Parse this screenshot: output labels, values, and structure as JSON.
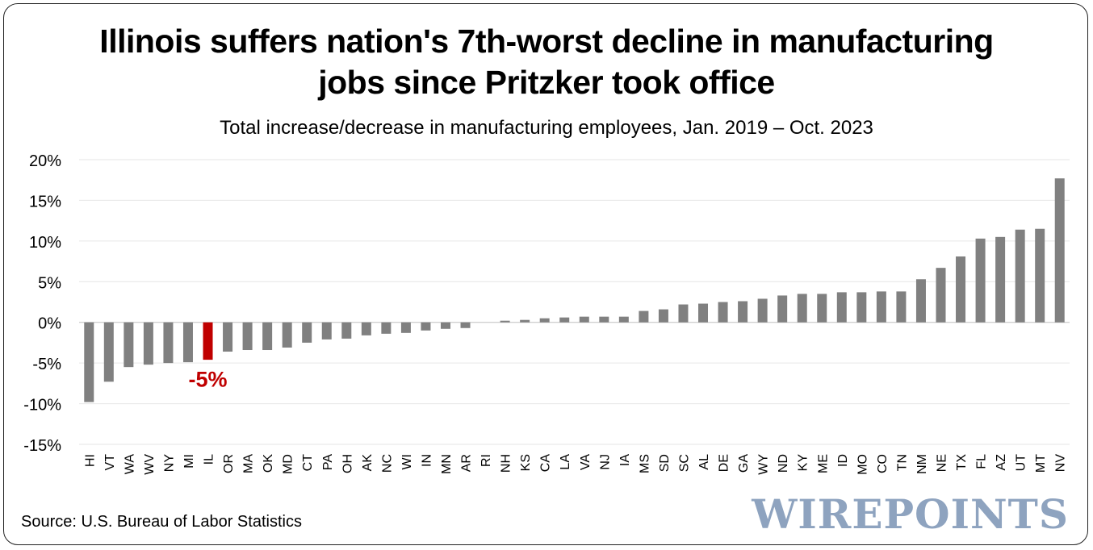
{
  "title_line1": "Illinois suffers nation's 7th-worst decline in manufacturing",
  "title_line2": "jobs since Pritzker took office",
  "subtitle": "Total increase/decrease in manufacturing employees, Jan. 2019 – Oct. 2023",
  "source": "Source: U.S. Bureau of Labor Statistics",
  "logo": "WIREPOINTS",
  "colors": {
    "bar": "#808080",
    "highlight": "#c00000",
    "grid": "#e6e6e6"
  },
  "chart_data": {
    "type": "bar",
    "categories": [
      "HI",
      "VT",
      "WA",
      "WV",
      "NY",
      "MI",
      "IL",
      "OR",
      "MA",
      "OK",
      "MD",
      "CT",
      "PA",
      "OH",
      "AK",
      "NC",
      "WI",
      "IN",
      "MN",
      "AR",
      "RI",
      "NH",
      "KS",
      "CA",
      "LA",
      "VA",
      "NJ",
      "IA",
      "MS",
      "SD",
      "SC",
      "AL",
      "DE",
      "GA",
      "WY",
      "ND",
      "KY",
      "ME",
      "ID",
      "MO",
      "CO",
      "TN",
      "NM",
      "NE",
      "TX",
      "FL",
      "AZ",
      "UT",
      "MT",
      "NV"
    ],
    "values": [
      -9.8,
      -7.3,
      -5.5,
      -5.2,
      -5.0,
      -4.9,
      -4.6,
      -3.6,
      -3.4,
      -3.4,
      -3.1,
      -2.5,
      -2.1,
      -2.0,
      -1.6,
      -1.4,
      -1.3,
      -1.0,
      -0.8,
      -0.7,
      0.0,
      0.2,
      0.3,
      0.5,
      0.6,
      0.7,
      0.7,
      0.7,
      1.4,
      1.6,
      2.2,
      2.3,
      2.5,
      2.6,
      2.9,
      3.3,
      3.5,
      3.5,
      3.7,
      3.7,
      3.8,
      3.8,
      5.3,
      6.7,
      8.1,
      10.3,
      10.5,
      11.4,
      11.5,
      17.7
    ],
    "highlight": "IL",
    "highlight_label": "-5%",
    "yticks": [
      "20%",
      "15%",
      "10%",
      "5%",
      "0%",
      "-5%",
      "-10%",
      "-15%"
    ],
    "ylim": [
      -15,
      20
    ],
    "grid": true
  }
}
